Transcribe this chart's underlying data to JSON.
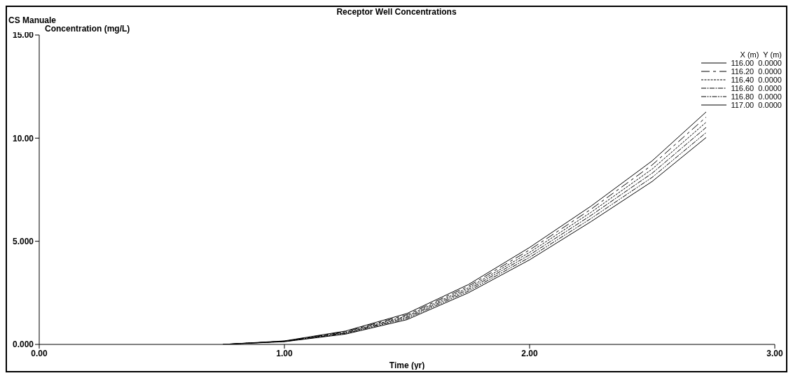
{
  "chart_data": {
    "type": "line",
    "title": "Receptor Well Concentrations",
    "subtitle": "CS Manuale",
    "xlabel": "Time (yr)",
    "ylabel": "Concentration (mg/L)",
    "legend_title": "X (m)  Y (m)",
    "x": [
      0.75,
      1.0,
      1.25,
      1.5,
      1.75,
      2.0,
      2.25,
      2.5,
      2.72
    ],
    "series": [
      {
        "name": "116.00  0.0000",
        "color": "#000000",
        "line_style": "solid",
        "values": [
          0,
          0.17,
          0.65,
          1.5,
          2.9,
          4.7,
          6.7,
          8.9,
          11.27
        ]
      },
      {
        "name": "116.20  0.0000",
        "color": "#000000",
        "line_style": "dashed",
        "values": [
          0,
          0.16,
          0.62,
          1.44,
          2.82,
          4.58,
          6.55,
          8.7,
          11.02
        ]
      },
      {
        "name": "116.40  0.0000",
        "color": "#000000",
        "line_style": "dotted",
        "values": [
          0,
          0.15,
          0.59,
          1.38,
          2.74,
          4.46,
          6.4,
          8.5,
          10.77
        ]
      },
      {
        "name": "116.60  0.0000",
        "color": "#000000",
        "line_style": "dashdot",
        "values": [
          0,
          0.15,
          0.56,
          1.32,
          2.66,
          4.34,
          6.25,
          8.3,
          10.52
        ]
      },
      {
        "name": "116.80  0.0000",
        "color": "#000000",
        "line_style": "dashdotdot",
        "values": [
          0,
          0.14,
          0.53,
          1.26,
          2.58,
          4.22,
          6.1,
          8.1,
          10.27
        ]
      },
      {
        "name": "117.00  0.0000",
        "color": "#000000",
        "line_style": "solid",
        "values": [
          0,
          0.13,
          0.5,
          1.2,
          2.5,
          4.1,
          5.95,
          7.9,
          10.03
        ]
      }
    ],
    "xlim": [
      0,
      3
    ],
    "xticks": [
      {
        "value": 0,
        "label": "0.00"
      },
      {
        "value": 1,
        "label": "1.00"
      },
      {
        "value": 2,
        "label": "2.00"
      },
      {
        "value": 3,
        "label": "3.00"
      }
    ],
    "ylim": [
      0,
      15
    ],
    "yticks": [
      {
        "value": 0,
        "label": "0.000"
      },
      {
        "value": 5,
        "label": "5.000"
      },
      {
        "value": 10,
        "label": "10.00"
      },
      {
        "value": 15,
        "label": "15.00"
      }
    ],
    "legend": "top right",
    "marker": "none"
  }
}
